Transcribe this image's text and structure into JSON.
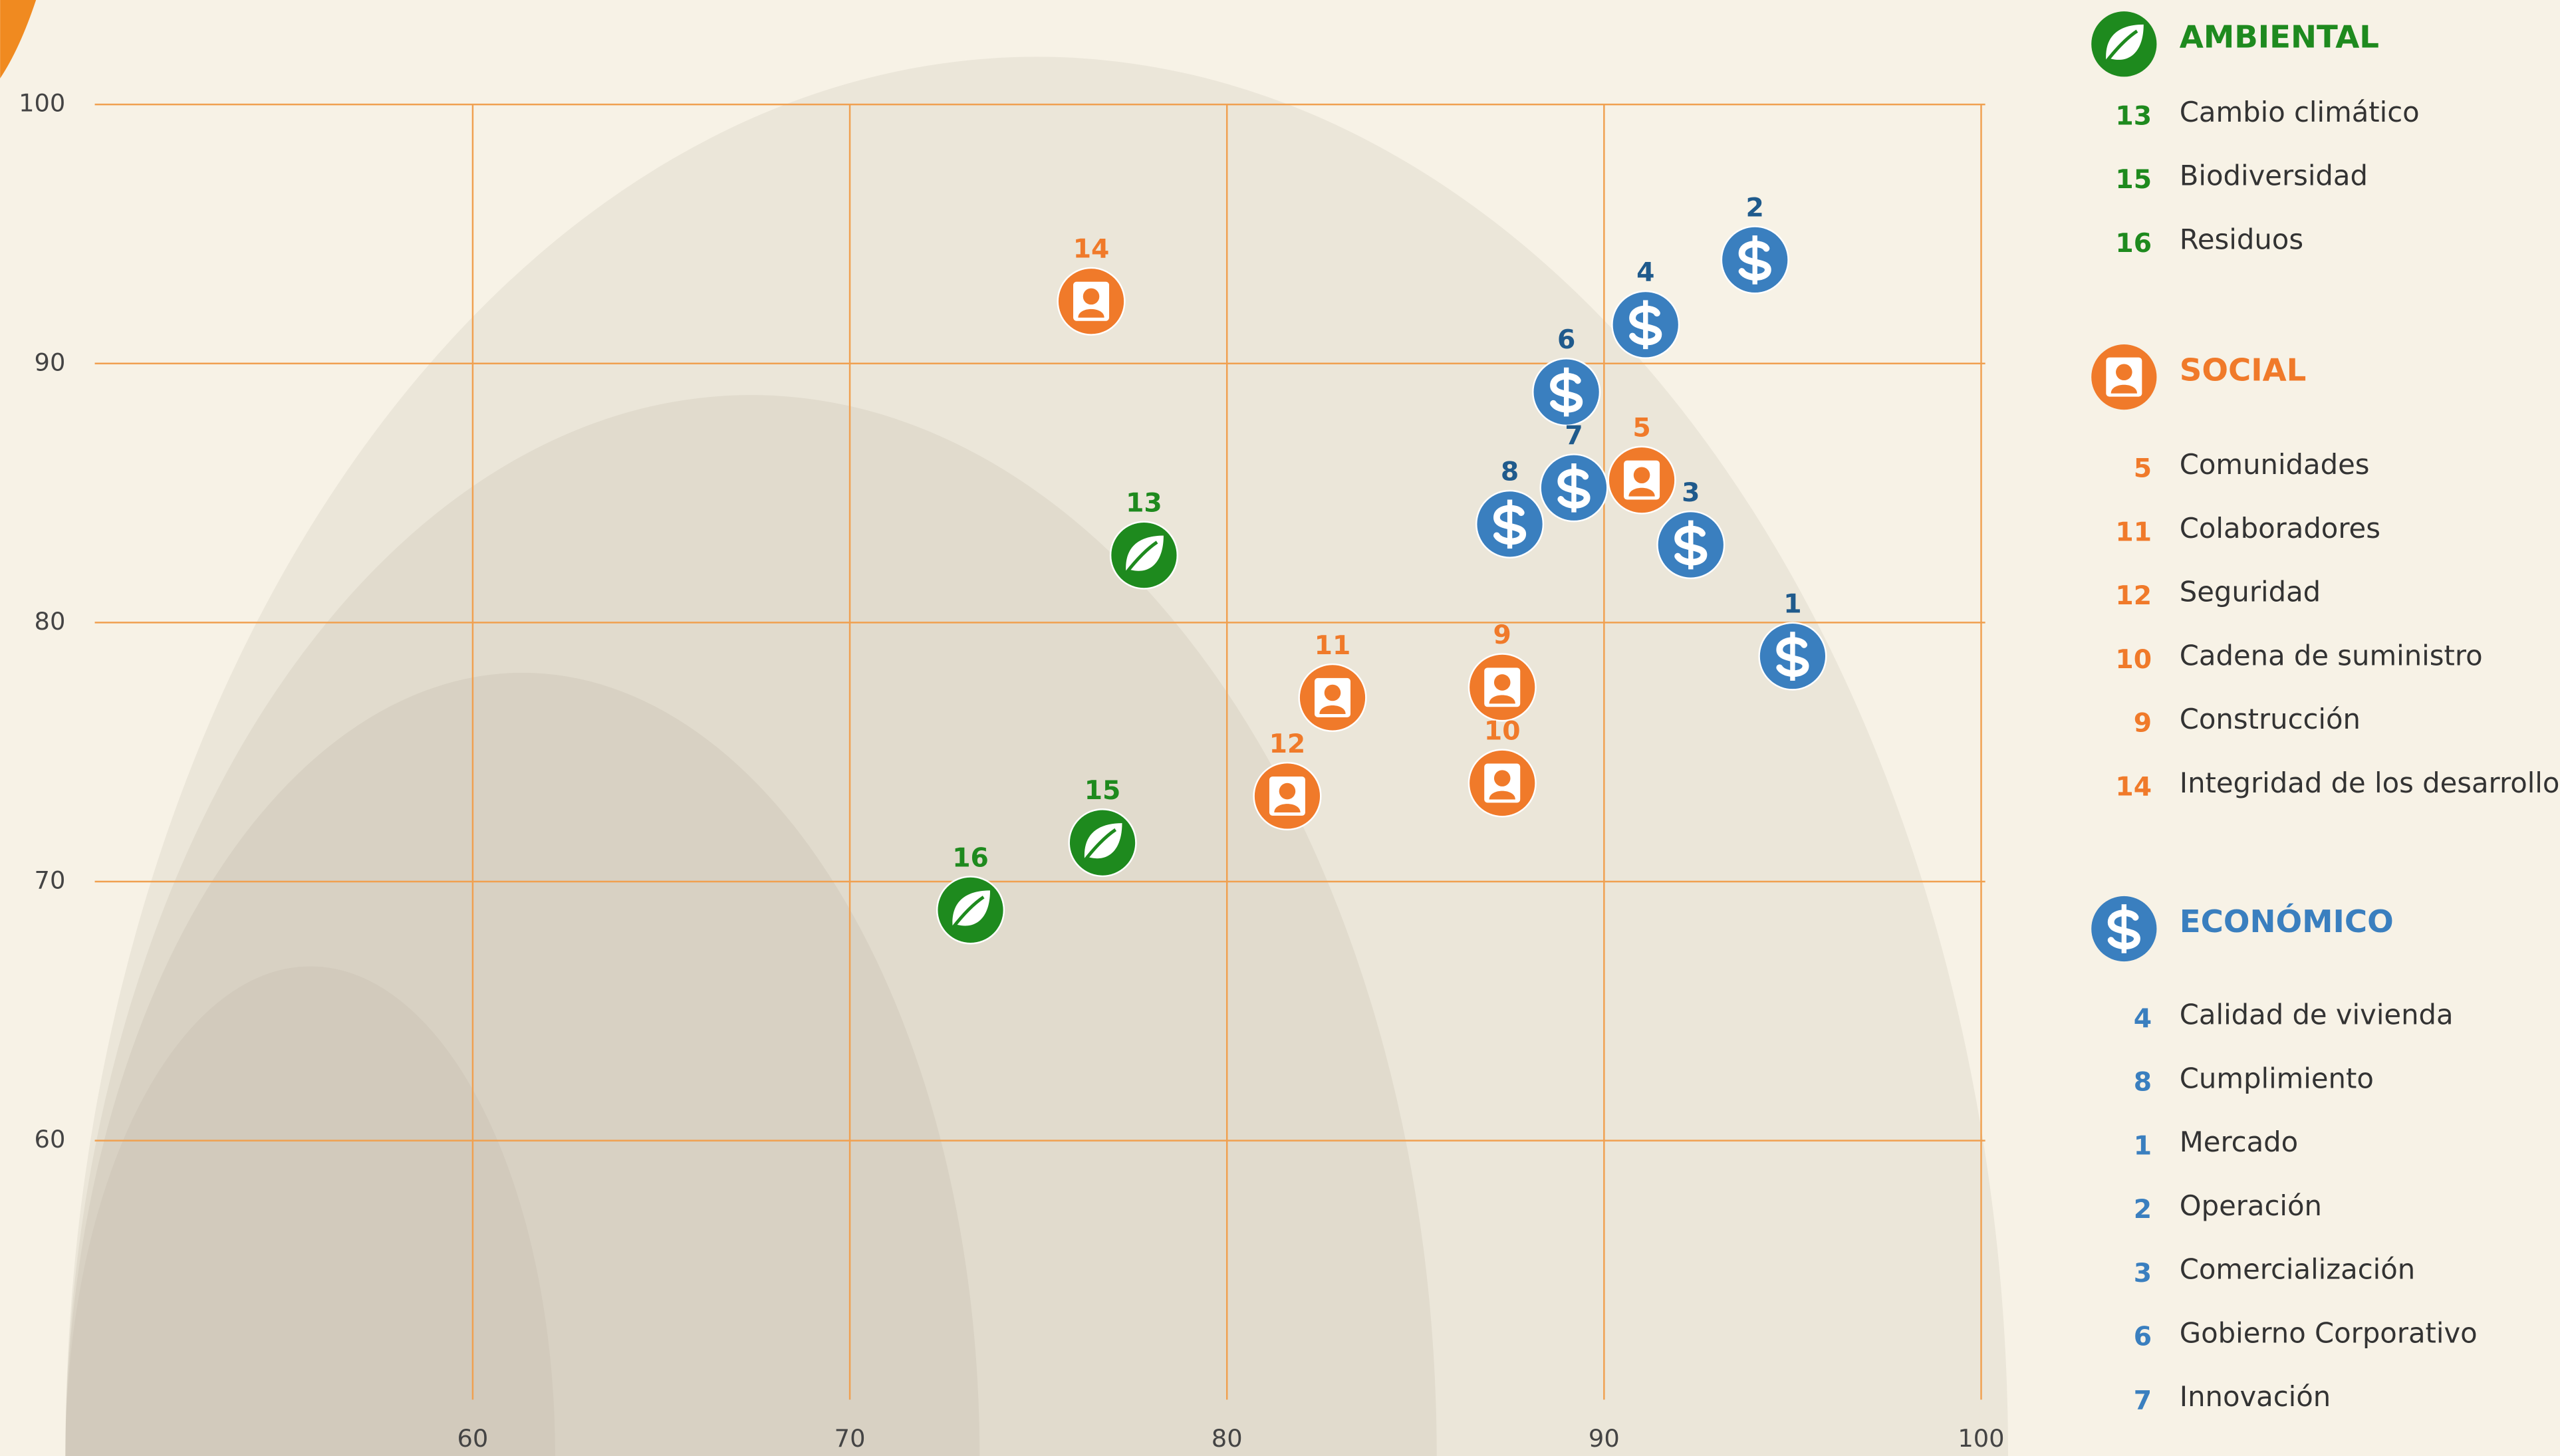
{
  "chart_data": {
    "type": "scatter",
    "xlim": [
      49,
      100
    ],
    "ylim": [
      50,
      100
    ],
    "xticks": [
      60,
      70,
      80,
      90,
      100
    ],
    "yticks": [
      60,
      70,
      80,
      90,
      100
    ],
    "grid": true,
    "grid_color": "#f0a050",
    "series": [
      {
        "name": "AMBIENTAL",
        "color": "#1e8a1e",
        "label_color": "#1e8a1e",
        "icon": "leaf",
        "labels": [
          "13",
          "15",
          "16"
        ],
        "x": [
          77.8,
          76.7,
          73.2
        ],
        "values": [
          82.6,
          71.5,
          68.9
        ],
        "legend_items": [
          {
            "id": "13",
            "label": "Cambio climático"
          },
          {
            "id": "15",
            "label": "Biodiversidad"
          },
          {
            "id": "16",
            "label": "Residuos"
          }
        ]
      },
      {
        "name": "SOCIAL",
        "color": "#f07a2a",
        "label_color": "#f07a2a",
        "icon": "person",
        "labels": [
          "14",
          "11",
          "12",
          "9",
          "10",
          "5"
        ],
        "x": [
          76.4,
          82.8,
          81.6,
          87.3,
          87.3,
          91.0
        ],
        "values": [
          92.4,
          77.1,
          73.3,
          77.5,
          73.8,
          85.5
        ],
        "legend_items": [
          {
            "id": "5",
            "label": "Comunidades"
          },
          {
            "id": "11",
            "label": "Colaboradores"
          },
          {
            "id": "12",
            "label": "Seguridad"
          },
          {
            "id": "10",
            "label": "Cadena de suministro"
          },
          {
            "id": "9",
            "label": "Construcción"
          },
          {
            "id": "14",
            "label": "Integridad de los desarrollos"
          }
        ]
      },
      {
        "name": "ECONÓMICO",
        "color": "#3a7fbf",
        "label_color": "#1f5a8c",
        "icon": "dollar",
        "labels": [
          "2",
          "4",
          "6",
          "7",
          "8",
          "3",
          "1"
        ],
        "x": [
          94.0,
          91.1,
          89.0,
          89.2,
          87.5,
          92.3,
          95.0
        ],
        "values": [
          94.0,
          91.5,
          88.9,
          85.2,
          83.8,
          83.0,
          78.7
        ],
        "legend_items": [
          {
            "id": "4",
            "label": "Calidad de vivienda"
          },
          {
            "id": "8",
            "label": "Cumplimiento"
          },
          {
            "id": "1",
            "label": "Mercado"
          },
          {
            "id": "2",
            "label": "Operación"
          },
          {
            "id": "3",
            "label": "Comercialización"
          },
          {
            "id": "6",
            "label": "Gobierno Corporativo"
          },
          {
            "id": "7",
            "label": "Innovación"
          }
        ]
      }
    ]
  }
}
